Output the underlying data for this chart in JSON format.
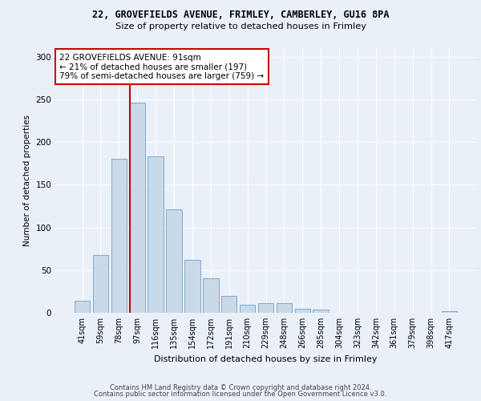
{
  "title1": "22, GROVEFIELDS AVENUE, FRIMLEY, CAMBERLEY, GU16 8PA",
  "title2": "Size of property relative to detached houses in Frimley",
  "xlabel": "Distribution of detached houses by size in Frimley",
  "ylabel": "Number of detached properties",
  "bar_labels": [
    "41sqm",
    "59sqm",
    "78sqm",
    "97sqm",
    "116sqm",
    "135sqm",
    "154sqm",
    "172sqm",
    "191sqm",
    "210sqm",
    "229sqm",
    "248sqm",
    "266sqm",
    "285sqm",
    "304sqm",
    "323sqm",
    "342sqm",
    "361sqm",
    "379sqm",
    "398sqm",
    "417sqm"
  ],
  "bar_values": [
    14,
    68,
    180,
    246,
    183,
    121,
    62,
    40,
    20,
    9,
    11,
    11,
    5,
    4,
    0,
    0,
    0,
    0,
    0,
    0,
    2
  ],
  "bar_color": "#c9d9e8",
  "bar_edge_color": "#7faacc",
  "vline_x_index": 3,
  "vline_color": "#cc0000",
  "annotation_text": "22 GROVEFIELDS AVENUE: 91sqm\n← 21% of detached houses are smaller (197)\n79% of semi-detached houses are larger (759) →",
  "annotation_box_color": "#ffffff",
  "annotation_box_edge": "#cc0000",
  "ylim": [
    0,
    310
  ],
  "yticks": [
    0,
    50,
    100,
    150,
    200,
    250,
    300
  ],
  "footer1": "Contains HM Land Registry data © Crown copyright and database right 2024.",
  "footer2": "Contains public sector information licensed under the Open Government Licence v3.0.",
  "bg_color": "#eaf0f8",
  "plot_bg_color": "#eaf0f8",
  "grid_color": "#ffffff"
}
